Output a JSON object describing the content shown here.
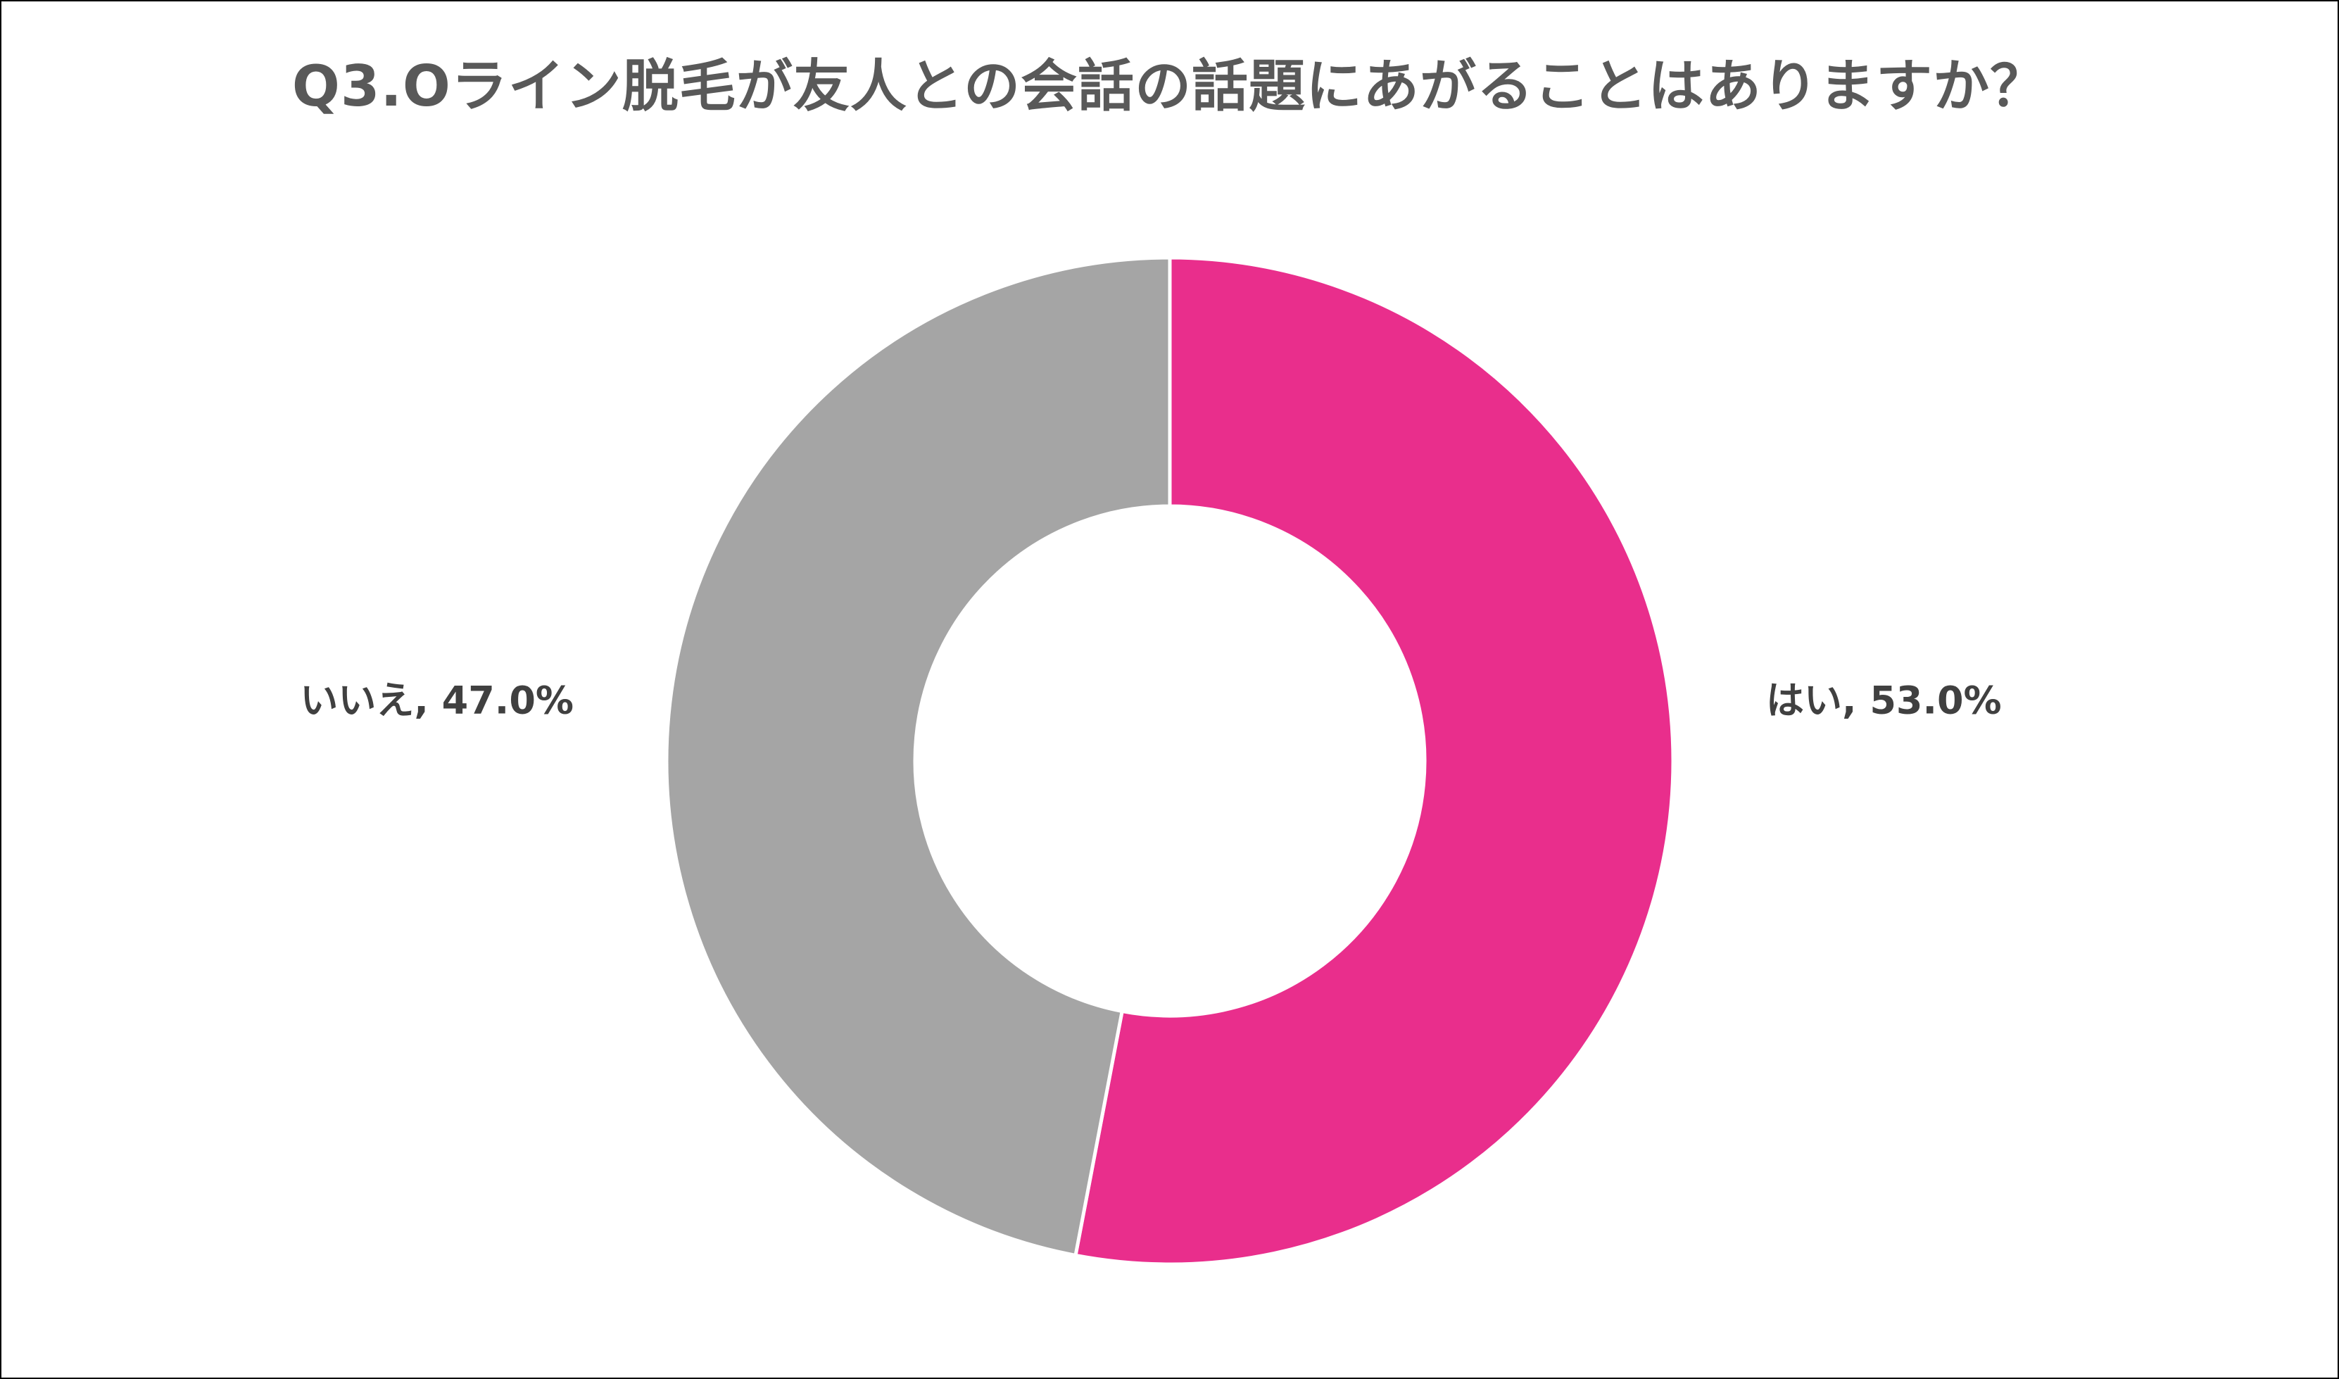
{
  "chart_data": {
    "type": "pie",
    "variant": "donut",
    "title": "Q3.Oライン脱毛が友人との会話の話題にあがることはありますか？",
    "legend": "none",
    "slices": [
      {
        "label": "はい",
        "value": 53.0,
        "display": "はい, 53.0%",
        "color": "#e92e8c"
      },
      {
        "label": "いいえ",
        "value": 47.0,
        "display": "いいえ, 47.0%",
        "color": "#a5a5a5"
      }
    ]
  },
  "colors": {
    "background": "#ffffff",
    "title_text": "#595959",
    "label_text": "#404040",
    "slice_border": "#ffffff"
  }
}
